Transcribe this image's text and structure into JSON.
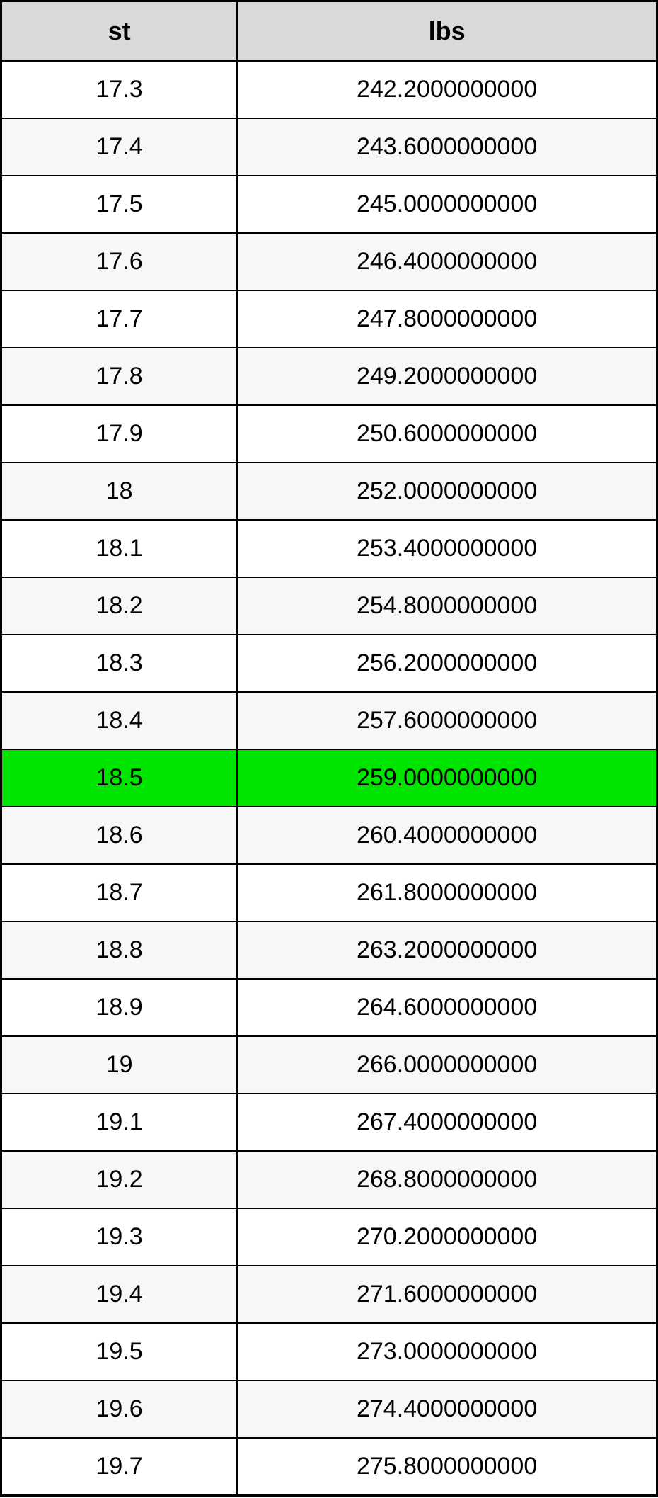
{
  "table": {
    "type": "table",
    "columns": [
      {
        "key": "st",
        "label": "st",
        "width_pct": 36
      },
      {
        "key": "lbs",
        "label": "lbs",
        "width_pct": 64
      }
    ],
    "header_bg_color": "#d9d9d9",
    "header_font_size": 36,
    "header_font_weight": "bold",
    "cell_font_size": 34,
    "border_color": "#000000",
    "outer_border_width": 3,
    "inner_border_width": 2,
    "row_bg_odd": "#ffffff",
    "row_bg_even": "#f7f7f7",
    "highlight_bg": "#00e500",
    "text_color": "#000000",
    "rows": [
      {
        "st": "17.3",
        "lbs": "242.2000000000",
        "highlight": false
      },
      {
        "st": "17.4",
        "lbs": "243.6000000000",
        "highlight": false
      },
      {
        "st": "17.5",
        "lbs": "245.0000000000",
        "highlight": false
      },
      {
        "st": "17.6",
        "lbs": "246.4000000000",
        "highlight": false
      },
      {
        "st": "17.7",
        "lbs": "247.8000000000",
        "highlight": false
      },
      {
        "st": "17.8",
        "lbs": "249.2000000000",
        "highlight": false
      },
      {
        "st": "17.9",
        "lbs": "250.6000000000",
        "highlight": false
      },
      {
        "st": "18",
        "lbs": "252.0000000000",
        "highlight": false
      },
      {
        "st": "18.1",
        "lbs": "253.4000000000",
        "highlight": false
      },
      {
        "st": "18.2",
        "lbs": "254.8000000000",
        "highlight": false
      },
      {
        "st": "18.3",
        "lbs": "256.2000000000",
        "highlight": false
      },
      {
        "st": "18.4",
        "lbs": "257.6000000000",
        "highlight": false
      },
      {
        "st": "18.5",
        "lbs": "259.0000000000",
        "highlight": true
      },
      {
        "st": "18.6",
        "lbs": "260.4000000000",
        "highlight": false
      },
      {
        "st": "18.7",
        "lbs": "261.8000000000",
        "highlight": false
      },
      {
        "st": "18.8",
        "lbs": "263.2000000000",
        "highlight": false
      },
      {
        "st": "18.9",
        "lbs": "264.6000000000",
        "highlight": false
      },
      {
        "st": "19",
        "lbs": "266.0000000000",
        "highlight": false
      },
      {
        "st": "19.1",
        "lbs": "267.4000000000",
        "highlight": false
      },
      {
        "st": "19.2",
        "lbs": "268.8000000000",
        "highlight": false
      },
      {
        "st": "19.3",
        "lbs": "270.2000000000",
        "highlight": false
      },
      {
        "st": "19.4",
        "lbs": "271.6000000000",
        "highlight": false
      },
      {
        "st": "19.5",
        "lbs": "273.0000000000",
        "highlight": false
      },
      {
        "st": "19.6",
        "lbs": "274.4000000000",
        "highlight": false
      },
      {
        "st": "19.7",
        "lbs": "275.8000000000",
        "highlight": false
      }
    ]
  }
}
